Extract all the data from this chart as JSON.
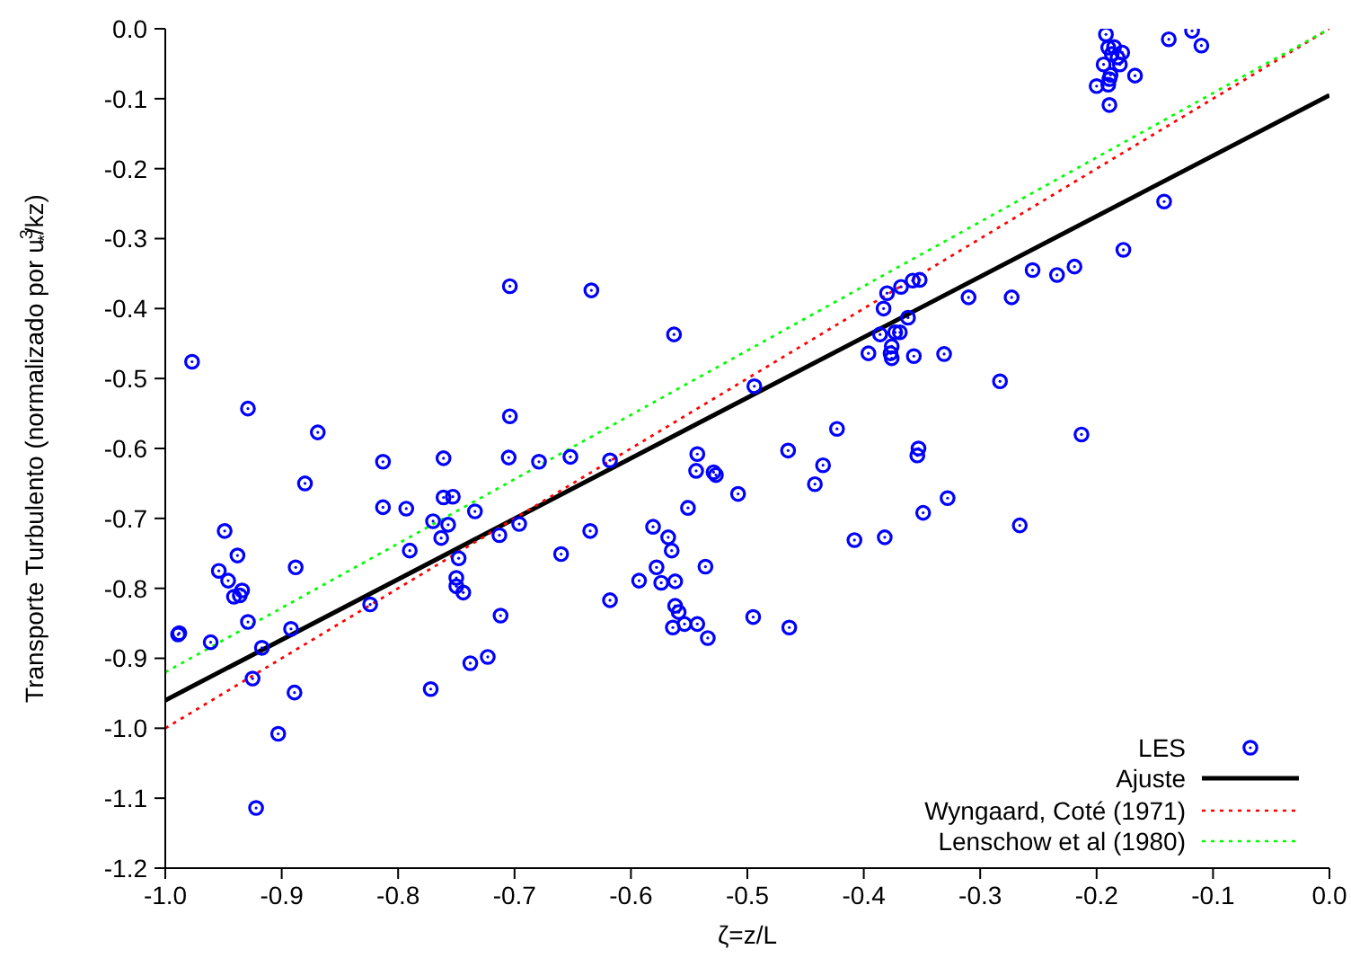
{
  "chart_data": {
    "type": "scatter",
    "xlabel": "ζ=z/L",
    "ylabel": "Transporte Turbulento (normalizado por u$^{3}$$_{*}$/kz)",
    "xlim": [
      -1.0,
      0.0
    ],
    "xticks": [
      {
        "value": -1.0,
        "label": "-1.0"
      },
      -0.9,
      -0.8,
      -0.7,
      -0.6,
      -0.5,
      -0.4,
      -0.3,
      -0.2,
      -0.1,
      {
        "value": 0.0,
        "label": "0.0"
      }
    ],
    "ylim": [
      -1.2,
      0.0
    ],
    "yticks": [
      {
        "value": -1.2,
        "label": "-1.2"
      },
      {
        "value": -1.1,
        "label": "-1.1"
      },
      {
        "value": -1.0,
        "label": "-1.0"
      },
      -0.9,
      -0.8,
      -0.7,
      -0.6,
      -0.5,
      -0.4,
      -0.3,
      -0.2,
      -0.1,
      {
        "value": 0.0,
        "label": "0.0"
      }
    ],
    "grid": false,
    "legend": "bottom right",
    "series": [
      {
        "name": "LES",
        "color": "#0000ff",
        "marker": "circle",
        "x": [
          -0.704,
          -0.977,
          -0.929,
          -0.869,
          -0.704,
          -0.813,
          -0.761,
          -0.705,
          -0.679,
          -0.88,
          -0.813,
          -0.793,
          -0.761,
          -0.753,
          -0.734,
          -0.77,
          -0.757,
          -0.763,
          -0.696,
          -0.713,
          -0.949,
          -0.938,
          -0.79,
          -0.954,
          -0.946,
          -0.888,
          -0.748,
          -0.934,
          -0.936,
          -0.941,
          -0.75,
          -0.75,
          -0.744,
          -0.824,
          -0.712,
          -0.929,
          -0.988,
          -0.989,
          -0.961,
          -0.892,
          -0.917,
          -0.738,
          -0.723,
          -0.925,
          -0.889,
          -0.772,
          -0.903,
          -0.922,
          -0.494,
          -0.652,
          -0.618,
          -0.423,
          -0.465,
          -0.543,
          -0.435,
          -0.544,
          -0.529,
          -0.527,
          -0.442,
          -0.508,
          -0.551,
          -0.581,
          -0.635,
          -0.568,
          -0.408,
          -0.66,
          -0.565,
          -0.578,
          -0.536,
          -0.593,
          -0.574,
          -0.562,
          -0.618,
          -0.562,
          -0.559,
          -0.495,
          -0.554,
          -0.543,
          -0.564,
          -0.464,
          -0.534,
          -0.634,
          -0.563,
          -0.255,
          -0.234,
          -0.219,
          -0.31,
          -0.273,
          -0.38,
          -0.368,
          -0.358,
          -0.352,
          -0.383,
          -0.362,
          -0.386,
          -0.373,
          -0.369,
          -0.396,
          -0.376,
          -0.377,
          -0.376,
          -0.357,
          -0.331,
          -0.283,
          -0.213,
          -0.353,
          -0.354,
          -0.328,
          -0.349,
          -0.382,
          -0.266,
          -0.192,
          -0.118,
          -0.138,
          -0.11,
          -0.19,
          -0.185,
          -0.178,
          -0.187,
          -0.182,
          -0.194,
          -0.18,
          -0.188,
          -0.189,
          -0.167,
          -0.2,
          -0.19,
          -0.189,
          -0.142,
          -0.177
        ],
        "values": [
          -0.368,
          -0.476,
          -0.543,
          -0.577,
          -0.554,
          -0.619,
          -0.614,
          -0.613,
          -0.619,
          -0.65,
          -0.684,
          -0.686,
          -0.67,
          -0.669,
          -0.69,
          -0.704,
          -0.709,
          -0.728,
          -0.708,
          -0.724,
          -0.718,
          -0.753,
          -0.746,
          -0.775,
          -0.789,
          -0.77,
          -0.757,
          -0.803,
          -0.81,
          -0.812,
          -0.785,
          -0.797,
          -0.806,
          -0.823,
          -0.839,
          -0.848,
          -0.864,
          -0.866,
          -0.877,
          -0.858,
          -0.885,
          -0.907,
          -0.898,
          -0.929,
          -0.949,
          -0.944,
          -1.008,
          -1.114,
          -0.511,
          -0.612,
          -0.617,
          -0.572,
          -0.603,
          -0.608,
          -0.624,
          -0.632,
          -0.634,
          -0.638,
          -0.651,
          -0.665,
          -0.685,
          -0.712,
          -0.718,
          -0.727,
          -0.731,
          -0.751,
          -0.746,
          -0.77,
          -0.769,
          -0.789,
          -0.792,
          -0.79,
          -0.817,
          -0.825,
          -0.834,
          -0.841,
          -0.851,
          -0.851,
          -0.856,
          -0.856,
          -0.871,
          -0.374,
          -0.437,
          -0.345,
          -0.352,
          -0.34,
          -0.384,
          -0.384,
          -0.378,
          -0.369,
          -0.36,
          -0.359,
          -0.4,
          -0.413,
          -0.437,
          -0.434,
          -0.434,
          -0.464,
          -0.454,
          -0.464,
          -0.471,
          -0.468,
          -0.465,
          -0.504,
          -0.58,
          -0.6,
          -0.61,
          -0.671,
          -0.692,
          -0.727,
          -0.71,
          -0.008,
          -0.003,
          -0.015,
          -0.024,
          -0.027,
          -0.026,
          -0.034,
          -0.036,
          -0.041,
          -0.051,
          -0.051,
          -0.066,
          -0.072,
          -0.067,
          -0.082,
          -0.08,
          -0.109,
          -0.247,
          -0.316
        ]
      },
      {
        "name": "Ajuste",
        "type": "line",
        "color": "#000000",
        "line_style": "solid",
        "marker": "none",
        "x": [
          -1.0,
          0.0
        ],
        "values": [
          -0.96,
          -0.095
        ]
      },
      {
        "name": "Wyngaard, Coté (1971)",
        "type": "line",
        "color": "#ff0000",
        "line_style": "dotted",
        "marker": "none",
        "x": [
          -1.0,
          0.0
        ],
        "values": [
          -1.0,
          0.0
        ]
      },
      {
        "name": "Lenschow et al (1980)",
        "type": "line",
        "color": "#00ff00",
        "line_style": "dotted",
        "marker": "none",
        "x": [
          -1.0,
          0.0
        ],
        "values": [
          -0.92,
          0.0
        ]
      }
    ]
  }
}
